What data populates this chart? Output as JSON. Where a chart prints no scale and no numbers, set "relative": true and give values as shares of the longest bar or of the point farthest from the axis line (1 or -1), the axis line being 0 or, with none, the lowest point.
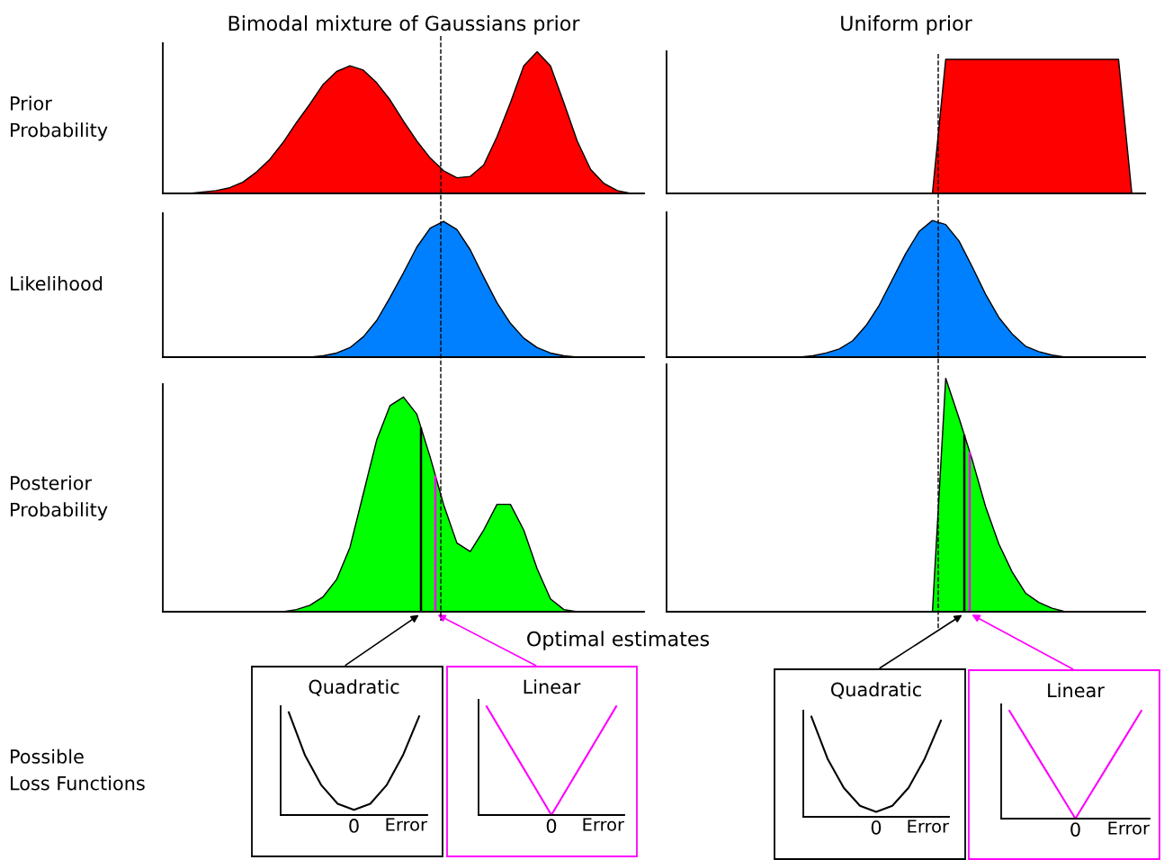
{
  "chart_data": [
    {
      "type": "area",
      "title": "Bimodal mixture of Gaussians prior",
      "ylabel": "Prior\nProbability",
      "relative": true,
      "tick_labels": false,
      "color": "#ff0000",
      "categories": [
        null,
        null,
        null,
        null,
        null,
        null,
        null,
        null,
        null,
        null,
        null,
        null,
        null,
        null,
        null,
        null,
        null,
        null,
        null,
        null,
        null,
        null,
        null,
        null,
        null,
        null,
        null,
        null,
        null,
        null,
        null,
        null,
        null,
        null,
        null,
        null,
        null
      ],
      "values": [
        0,
        0,
        0,
        0.01,
        0.02,
        0.04,
        0.08,
        0.15,
        0.24,
        0.36,
        0.5,
        0.63,
        0.77,
        0.86,
        0.9,
        0.87,
        0.78,
        0.66,
        0.51,
        0.37,
        0.25,
        0.16,
        0.11,
        0.12,
        0.2,
        0.4,
        0.64,
        0.9,
        1,
        0.9,
        0.64,
        0.37,
        0.17,
        0.07,
        0.02,
        0,
        0
      ]
    },
    {
      "type": "area",
      "title": "Uniform prior",
      "relative": true,
      "tick_labels": false,
      "color": "#ff0000",
      "categories": [
        null,
        null,
        null,
        null,
        null,
        null,
        null,
        null,
        null,
        null,
        null,
        null,
        null,
        null,
        null,
        null,
        null,
        null,
        null,
        null,
        null,
        null,
        null,
        null,
        null,
        null,
        null,
        null,
        null,
        null,
        null,
        null,
        null,
        null,
        null,
        null,
        null
      ],
      "values": [
        0,
        0,
        0,
        0,
        0,
        0,
        0,
        0,
        0,
        0,
        0,
        0,
        0,
        0,
        0,
        0,
        0,
        0,
        0,
        0,
        0,
        1,
        1,
        1,
        1,
        1,
        1,
        1,
        1,
        1,
        1,
        1,
        1,
        1,
        1,
        0,
        0
      ]
    },
    {
      "type": "area",
      "ylabel": "Likelihood",
      "relative": true,
      "tick_labels": false,
      "color": "#0080ff",
      "categories": [
        null,
        null,
        null,
        null,
        null,
        null,
        null,
        null,
        null,
        null,
        null,
        null,
        null,
        null,
        null,
        null,
        null,
        null,
        null,
        null,
        null,
        null,
        null,
        null,
        null,
        null,
        null,
        null,
        null,
        null,
        null,
        null,
        null,
        null,
        null,
        null,
        null
      ],
      "values": [
        0,
        0,
        0,
        0,
        0,
        0,
        0,
        0,
        0,
        0,
        0,
        0,
        0.01,
        0.03,
        0.07,
        0.15,
        0.27,
        0.44,
        0.62,
        0.81,
        0.95,
        1,
        0.94,
        0.79,
        0.59,
        0.4,
        0.25,
        0.14,
        0.07,
        0.03,
        0.01,
        0,
        0,
        0,
        0,
        0,
        0
      ]
    },
    {
      "type": "area",
      "relative": true,
      "tick_labels": false,
      "color": "#0080ff",
      "categories": [
        null,
        null,
        null,
        null,
        null,
        null,
        null,
        null,
        null,
        null,
        null,
        null,
        null,
        null,
        null,
        null,
        null,
        null,
        null,
        null,
        null,
        null,
        null,
        null,
        null,
        null,
        null,
        null,
        null,
        null,
        null,
        null,
        null,
        null,
        null,
        null,
        null
      ],
      "values": [
        0,
        0,
        0,
        0,
        0,
        0,
        0,
        0,
        0,
        0,
        0,
        0.01,
        0.03,
        0.06,
        0.12,
        0.23,
        0.38,
        0.57,
        0.76,
        0.92,
        1,
        0.97,
        0.85,
        0.66,
        0.46,
        0.29,
        0.17,
        0.08,
        0.04,
        0.015,
        0,
        0,
        0,
        0,
        0,
        0,
        0
      ]
    },
    {
      "type": "area",
      "ylabel": "Posterior\nProbability",
      "relative": true,
      "tick_labels": false,
      "color": "#00ff00",
      "annotations": [
        "Optimal estimates"
      ],
      "categories": [
        null,
        null,
        null,
        null,
        null,
        null,
        null,
        null,
        null,
        null,
        null,
        null,
        null,
        null,
        null,
        null,
        null,
        null,
        null,
        null,
        null,
        null,
        null,
        null,
        null,
        null,
        null,
        null,
        null,
        null,
        null,
        null,
        null,
        null,
        null,
        null,
        null
      ],
      "values": [
        0,
        0,
        0,
        0,
        0,
        0,
        0,
        0,
        0,
        0,
        0.01,
        0.03,
        0.07,
        0.15,
        0.3,
        0.55,
        0.8,
        0.96,
        1,
        0.92,
        0.72,
        0.5,
        0.32,
        0.28,
        0.38,
        0.5,
        0.5,
        0.38,
        0.2,
        0.06,
        0.01,
        0,
        0,
        0,
        0,
        0,
        0
      ]
    },
    {
      "type": "area",
      "relative": true,
      "tick_labels": false,
      "color": "#00ff00",
      "categories": [
        null,
        null,
        null,
        null,
        null,
        null,
        null,
        null,
        null,
        null,
        null,
        null,
        null,
        null,
        null,
        null,
        null,
        null,
        null,
        null,
        null,
        null,
        null,
        null,
        null,
        null,
        null,
        null,
        null,
        null,
        null,
        null,
        null,
        null,
        null,
        null,
        null
      ],
      "values": [
        0,
        0,
        0,
        0,
        0,
        0,
        0,
        0,
        0,
        0,
        0,
        0,
        0,
        0,
        0,
        0,
        0,
        0,
        0,
        0,
        0,
        1,
        0.83,
        0.65,
        0.45,
        0.29,
        0.17,
        0.08,
        0.04,
        0.015,
        0,
        0,
        0,
        0,
        0,
        0,
        0
      ]
    },
    {
      "type": "line",
      "title": "Quadratic",
      "ylabel": "Possible\nLoss Functions",
      "xlabel": "Error",
      "annotations": [
        "0"
      ],
      "relative": true,
      "tick_labels": false,
      "color": "#000000",
      "categories": [
        null,
        null,
        null,
        null,
        null,
        null,
        null,
        null,
        null
      ],
      "values": [
        1,
        0.58,
        0.29,
        0.11,
        0.05,
        0.11,
        0.29,
        0.58,
        0.96
      ]
    },
    {
      "type": "line",
      "title": "Linear",
      "xlabel": "Error",
      "annotations": [
        "0"
      ],
      "relative": true,
      "tick_labels": false,
      "color": "#ff00ff",
      "categories": [
        null,
        null,
        null,
        null,
        null,
        null,
        null,
        null,
        null
      ],
      "values": [
        1,
        0.75,
        0.5,
        0.25,
        0,
        0.25,
        0.5,
        0.75,
        1
      ]
    },
    {
      "type": "line",
      "title": "Quadratic",
      "xlabel": "Error",
      "annotations": [
        "0"
      ],
      "relative": true,
      "tick_labels": false,
      "color": "#000000",
      "categories": [
        null,
        null,
        null,
        null,
        null,
        null,
        null,
        null,
        null
      ],
      "values": [
        1,
        0.58,
        0.29,
        0.11,
        0.05,
        0.11,
        0.29,
        0.58,
        0.96
      ]
    },
    {
      "type": "line",
      "title": "Linear",
      "xlabel": "Error",
      "annotations": [
        "0"
      ],
      "relative": true,
      "tick_labels": false,
      "color": "#ff00ff",
      "categories": [
        null,
        null,
        null,
        null,
        null,
        null,
        null,
        null,
        null
      ],
      "values": [
        1,
        0.75,
        0.5,
        0.25,
        0,
        0.25,
        0.5,
        0.75,
        1
      ]
    }
  ]
}
